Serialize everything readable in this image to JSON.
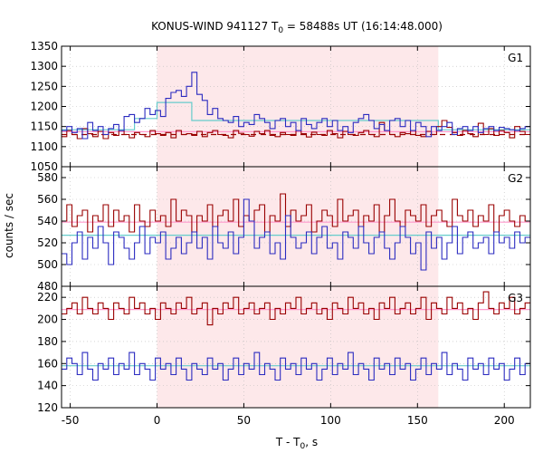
{
  "chart_data": {
    "type": "line",
    "title": "KONUS-WIND 941127 T",
    "title_sub": "0",
    "title_rest": " = 58488s UT (16:14:48.000)",
    "xlabel": "T - T",
    "xlabel_sub": "0",
    "xlabel_rest": ", s",
    "ylabel": "counts / sec",
    "xlim": [
      -55,
      215
    ],
    "xticks": [
      -50,
      0,
      50,
      100,
      150,
      200
    ],
    "xtick_labels": [
      "-50",
      "0",
      "50",
      "100",
      "150",
      "200"
    ],
    "shaded_interval": [
      0,
      162
    ],
    "colors": {
      "shade": "#fde8ea",
      "red_series": "#990000",
      "blue_series": "#2b2bc0",
      "red_fit": "#ff99cc",
      "blue_fit": "#66cccc",
      "dashed": "#990000"
    },
    "panels": [
      {
        "name": "G1",
        "ylim": [
          1050,
          1350
        ],
        "yticks": [
          1050,
          1100,
          1150,
          1200,
          1250,
          1300,
          1350
        ],
        "ytick_labels": [
          "1050",
          "1100",
          "1150",
          "1200",
          "1250",
          "1300",
          "1350"
        ],
        "dashed_level": 1130,
        "bin_width": 3,
        "red": {
          "fit": [
            [
              -55,
              1137
            ],
            [
              215,
              1137
            ]
          ],
          "values": [
            1125,
            1140,
            1130,
            1120,
            1145,
            1132,
            1125,
            1138,
            1120,
            1135,
            1128,
            1140,
            1130,
            1122,
            1135,
            1130,
            1125,
            1140,
            1132,
            1128,
            1135,
            1122,
            1140,
            1130,
            1132,
            1128,
            1138,
            1125,
            1135,
            1140,
            1130,
            1128,
            1122,
            1140,
            1133,
            1130,
            1126,
            1138,
            1132,
            1140,
            1128,
            1125,
            1135,
            1130,
            1128,
            1140,
            1132,
            1124,
            1136,
            1130,
            1128,
            1140,
            1132,
            1122,
            1138,
            1130,
            1128,
            1135,
            1140,
            1130,
            1125,
            1160,
            1140,
            1130,
            1125,
            1135,
            1132,
            1140,
            1128,
            1125,
            1138,
            1130,
            1150,
            1165,
            1148,
            1135,
            1128,
            1140,
            1132,
            1125,
            1158,
            1130,
            1145,
            1128,
            1140,
            1135,
            1122,
            1150,
            1138,
            1130
          ]
        },
        "blue": {
          "fit": [
            [
              -55,
              1142
            ],
            [
              -13,
              1142
            ],
            [
              -13,
              1170
            ],
            [
              0,
              1170
            ],
            [
              0,
              1210
            ],
            [
              20,
              1210
            ],
            [
              20,
              1165
            ],
            [
              162,
              1165
            ],
            [
              162,
              1142
            ],
            [
              215,
              1142
            ]
          ],
          "values": [
            1140,
            1150,
            1135,
            1145,
            1120,
            1160,
            1140,
            1150,
            1130,
            1145,
            1155,
            1140,
            1175,
            1180,
            1160,
            1170,
            1195,
            1180,
            1190,
            1175,
            1220,
            1235,
            1240,
            1225,
            1250,
            1285,
            1230,
            1215,
            1180,
            1195,
            1170,
            1165,
            1160,
            1175,
            1150,
            1160,
            1155,
            1180,
            1170,
            1160,
            1145,
            1165,
            1170,
            1150,
            1160,
            1140,
            1170,
            1155,
            1145,
            1160,
            1170,
            1150,
            1165,
            1140,
            1150,
            1135,
            1160,
            1170,
            1180,
            1165,
            1145,
            1155,
            1140,
            1165,
            1170,
            1150,
            1165,
            1140,
            1160,
            1150,
            1125,
            1150,
            1140,
            1150,
            1160,
            1130,
            1145,
            1150,
            1140,
            1150,
            1135,
            1145,
            1150,
            1140,
            1148,
            1145,
            1142,
            1140,
            1145,
            1150
          ]
        }
      },
      {
        "name": "G2",
        "ylim": [
          480,
          590
        ],
        "yticks": [
          480,
          500,
          520,
          540,
          560,
          580
        ],
        "ytick_labels": [
          "480",
          "500",
          "520",
          "540",
          "560",
          "580"
        ],
        "bin_width": 3,
        "red": {
          "fit": [
            [
              -55,
              539
            ],
            [
              215,
              539
            ]
          ],
          "values": [
            540,
            555,
            535,
            545,
            550,
            530,
            545,
            540,
            555,
            535,
            550,
            540,
            545,
            530,
            555,
            540,
            535,
            550,
            540,
            545,
            535,
            560,
            540,
            550,
            545,
            530,
            545,
            540,
            555,
            535,
            545,
            550,
            540,
            560,
            535,
            545,
            540,
            550,
            555,
            530,
            545,
            540,
            565,
            535,
            550,
            540,
            545,
            555,
            530,
            540,
            550,
            545,
            535,
            560,
            540,
            545,
            550,
            535,
            545,
            540,
            555,
            530,
            545,
            560,
            540,
            535,
            550,
            545,
            540,
            555,
            535,
            545,
            550,
            540,
            535,
            560,
            545,
            540,
            550,
            535,
            545,
            540,
            555,
            530,
            545,
            550,
            540,
            535,
            545,
            540
          ]
        },
        "blue": {
          "fit": [
            [
              -55,
              527
            ],
            [
              215,
              527
            ]
          ],
          "values": [
            510,
            500,
            520,
            530,
            505,
            525,
            515,
            535,
            520,
            500,
            530,
            525,
            515,
            505,
            520,
            535,
            510,
            525,
            520,
            530,
            505,
            515,
            525,
            510,
            520,
            530,
            515,
            525,
            505,
            535,
            520,
            515,
            530,
            510,
            525,
            560,
            540,
            515,
            525,
            530,
            510,
            520,
            505,
            545,
            525,
            515,
            520,
            530,
            510,
            525,
            535,
            515,
            520,
            505,
            530,
            525,
            515,
            535,
            520,
            510,
            525,
            530,
            515,
            505,
            520,
            535,
            525,
            510,
            520,
            495,
            530,
            515,
            525,
            505,
            520,
            535,
            510,
            525,
            530,
            515,
            520,
            525,
            510,
            530,
            520,
            525,
            515,
            530,
            520,
            525
          ]
        }
      },
      {
        "name": "G3",
        "ylim": [
          120,
          230
        ],
        "yticks": [
          120,
          140,
          160,
          180,
          200,
          220
        ],
        "ytick_labels": [
          "120",
          "140",
          "160",
          "180",
          "200",
          "220"
        ],
        "bin_width": 3,
        "red": {
          "fit": [
            [
              -55,
              209
            ],
            [
              215,
              209
            ]
          ],
          "values": [
            205,
            210,
            215,
            205,
            220,
            210,
            205,
            215,
            210,
            200,
            215,
            210,
            205,
            220,
            210,
            215,
            205,
            210,
            200,
            215,
            210,
            205,
            215,
            210,
            220,
            205,
            210,
            215,
            195,
            210,
            205,
            215,
            210,
            220,
            205,
            210,
            215,
            205,
            210,
            215,
            200,
            210,
            205,
            215,
            210,
            220,
            205,
            210,
            215,
            205,
            210,
            200,
            215,
            210,
            205,
            220,
            210,
            215,
            205,
            210,
            200,
            215,
            210,
            220,
            205,
            210,
            215,
            205,
            210,
            220,
            200,
            215,
            210,
            205,
            220,
            210,
            215,
            205,
            210,
            200,
            215,
            225,
            210,
            205,
            215,
            210,
            220,
            205,
            210,
            215
          ]
        },
        "blue": {
          "fit": [
            [
              -55,
              158
            ],
            [
              215,
              158
            ]
          ],
          "values": [
            155,
            165,
            160,
            150,
            170,
            155,
            145,
            160,
            155,
            165,
            150,
            160,
            155,
            170,
            150,
            160,
            155,
            145,
            165,
            155,
            160,
            150,
            165,
            155,
            145,
            160,
            155,
            150,
            165,
            155,
            160,
            145,
            155,
            165,
            150,
            160,
            155,
            170,
            150,
            160,
            155,
            145,
            165,
            155,
            160,
            150,
            165,
            155,
            160,
            145,
            155,
            165,
            150,
            160,
            155,
            170,
            150,
            160,
            155,
            145,
            165,
            155,
            160,
            150,
            165,
            155,
            160,
            145,
            155,
            165,
            150,
            160,
            155,
            170,
            150,
            160,
            155,
            145,
            165,
            155,
            160,
            150,
            165,
            155,
            160,
            145,
            155,
            165,
            150,
            160
          ]
        }
      }
    ]
  }
}
